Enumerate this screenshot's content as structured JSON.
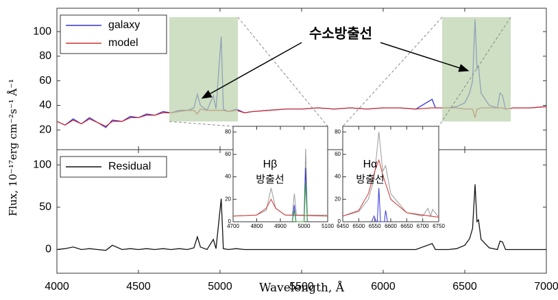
{
  "chart_data": [
    {
      "type": "line",
      "xlim": [
        4000,
        7000
      ],
      "ylim": [
        4,
        119
      ],
      "yticks": [
        20,
        40,
        60,
        80,
        100
      ],
      "legend": "upper left",
      "annotation": "수소방출선",
      "x": [
        4000,
        4050,
        4100,
        4150,
        4200,
        4250,
        4300,
        4340,
        4400,
        4450,
        4500,
        4550,
        4600,
        4650,
        4700,
        4750,
        4800,
        4840,
        4861,
        4880,
        4920,
        4959,
        4975,
        5007,
        5020,
        5050,
        5100,
        5150,
        5200,
        5300,
        5400,
        5500,
        5600,
        5700,
        5800,
        5900,
        6000,
        6100,
        6200,
        6300,
        6320,
        6400,
        6450,
        6500,
        6530,
        6548,
        6563,
        6575,
        6584,
        6600,
        6650,
        6700,
        6716,
        6731,
        6750,
        6800,
        6900,
        7000
      ],
      "series": [
        {
          "name": "galaxy",
          "color": "#3333dd",
          "values": [
            27,
            24,
            29,
            25,
            30,
            26,
            22,
            28,
            27,
            31,
            30,
            33,
            32,
            35,
            34,
            36,
            36,
            38,
            49,
            40,
            36,
            48,
            37,
            96,
            37,
            35,
            37,
            34,
            35,
            36,
            37,
            37,
            38,
            37,
            38,
            37,
            38,
            38,
            37,
            45,
            38,
            38,
            39,
            42,
            50,
            60,
            110,
            70,
            72,
            50,
            40,
            38,
            50,
            48,
            37,
            38,
            38,
            39
          ]
        },
        {
          "name": "model",
          "color": "#cc3333",
          "values": [
            27,
            24,
            28,
            25,
            29,
            26,
            23,
            27,
            27,
            30,
            30,
            32,
            32,
            34,
            34,
            35,
            36,
            36,
            33,
            37,
            36,
            36,
            36,
            36,
            36,
            35,
            36,
            34,
            35,
            36,
            37,
            37,
            38,
            37,
            38,
            37,
            38,
            38,
            37,
            38,
            38,
            38,
            38,
            37,
            37,
            37,
            30,
            37,
            37,
            38,
            38,
            38,
            38,
            38,
            37,
            38,
            38,
            39
          ]
        }
      ]
    },
    {
      "type": "line",
      "xlim": [
        4000,
        7000
      ],
      "ylim": [
        -28,
        118
      ],
      "yticks": [
        0,
        50,
        100
      ],
      "xticks": [
        4000,
        4500,
        5000,
        5500,
        6000,
        6500,
        7000
      ],
      "legend": "upper left",
      "xlabel": "Wavelength, Å",
      "ylabel": "Flux, 10⁻¹⁷erg cm⁻²s⁻¹ Å⁻¹",
      "x": [
        4000,
        4050,
        4100,
        4150,
        4200,
        4250,
        4300,
        4340,
        4400,
        4450,
        4500,
        4550,
        4600,
        4650,
        4700,
        4750,
        4800,
        4840,
        4861,
        4880,
        4920,
        4959,
        4975,
        5007,
        5020,
        5050,
        5100,
        5150,
        5200,
        5300,
        5400,
        5500,
        5600,
        5700,
        5800,
        5900,
        6000,
        6100,
        6200,
        6300,
        6320,
        6400,
        6450,
        6500,
        6530,
        6548,
        6563,
        6575,
        6584,
        6600,
        6650,
        6700,
        6716,
        6731,
        6750,
        6800,
        6900,
        7000
      ],
      "series": [
        {
          "name": "Residual",
          "color": "#111111",
          "values": [
            0,
            1,
            3,
            0,
            1,
            0,
            -1,
            5,
            0,
            1,
            0,
            1,
            0,
            1,
            0,
            1,
            0,
            2,
            15,
            3,
            0,
            12,
            1,
            60,
            1,
            0,
            1,
            0,
            0,
            0,
            0,
            0,
            0,
            0,
            0,
            0,
            0,
            0,
            0,
            7,
            0,
            0,
            1,
            5,
            13,
            25,
            77,
            33,
            35,
            12,
            2,
            0,
            10,
            9,
            0,
            0,
            0,
            0
          ]
        }
      ]
    },
    {
      "type": "line",
      "xlim": [
        4700,
        5100
      ],
      "ylim": [
        0,
        85
      ],
      "yticks": [
        0,
        20,
        40,
        60,
        80
      ],
      "xticks": [
        4700,
        4800,
        4900,
        5000,
        5100
      ],
      "label": "Hβ",
      "sublabel": "방출선",
      "series": [
        {
          "color": "#999999",
          "x": [
            4700,
            4800,
            4840,
            4861,
            4880,
            4920,
            4950,
            4959,
            4968,
            5000,
            5007,
            5014,
            5100
          ],
          "values": [
            5,
            6,
            10,
            30,
            12,
            6,
            6,
            25,
            6,
            6,
            65,
            6,
            6
          ]
        },
        {
          "color": "#cc3333",
          "x": [
            4700,
            4800,
            4840,
            4861,
            4880,
            4920,
            5100
          ],
          "values": [
            5,
            6,
            12,
            20,
            12,
            6,
            5
          ]
        },
        {
          "color": "#3333dd",
          "x": [
            4950,
            4959,
            4966,
            5000,
            5007,
            5014
          ],
          "values": [
            0,
            15,
            0,
            0,
            48,
            0
          ]
        },
        {
          "color": "#33aa33",
          "x": [
            4950,
            4959,
            4966,
            5000,
            5007,
            5014
          ],
          "values": [
            0,
            10,
            0,
            0,
            35,
            0
          ]
        }
      ]
    },
    {
      "type": "line",
      "xlim": [
        6450,
        6750
      ],
      "ylim": [
        0,
        85
      ],
      "yticks": [
        0,
        20,
        40,
        60,
        80
      ],
      "xticks": [
        6450,
        6500,
        6550,
        6600,
        6650,
        6700,
        6750
      ],
      "label": "Hα",
      "sublabel": "방출선",
      "series": [
        {
          "color": "#999999",
          "x": [
            6450,
            6500,
            6530,
            6548,
            6563,
            6575,
            6584,
            6600,
            6650,
            6700,
            6716,
            6725,
            6731,
            6750
          ],
          "values": [
            5,
            9,
            20,
            38,
            80,
            45,
            50,
            25,
            8,
            5,
            12,
            5,
            11,
            4
          ]
        },
        {
          "color": "#cc3333",
          "x": [
            6450,
            6500,
            6530,
            6550,
            6563,
            6575,
            6600,
            6650,
            6750
          ],
          "values": [
            5,
            10,
            25,
            45,
            55,
            42,
            20,
            8,
            4
          ]
        },
        {
          "color": "#3333dd",
          "x": [
            6540,
            6548,
            6555,
            6558,
            6563,
            6568,
            6580,
            6584,
            6590
          ],
          "values": [
            0,
            5,
            0,
            0,
            30,
            0,
            0,
            10,
            0
          ]
        }
      ]
    }
  ]
}
